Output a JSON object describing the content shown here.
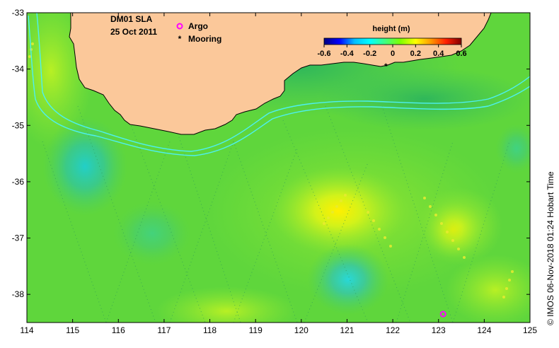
{
  "title": {
    "product": "DM01 SLA",
    "date": "25 Oct 2011"
  },
  "legend": [
    {
      "label": "Argo",
      "color": "#ff00ff",
      "marker": "circle-open"
    },
    {
      "label": "Mooring",
      "color": "#000000",
      "marker": "asterisk"
    }
  ],
  "colorbar": {
    "title": "height (m)",
    "ticks": [
      "-0.6",
      "-0.4",
      "-0.2",
      "0",
      "0.2",
      "0.4",
      "0.6"
    ],
    "range": [
      -0.6,
      0.6
    ],
    "colors": [
      "#000080",
      "#0000ff",
      "#00bfff",
      "#00ffff",
      "#40ff80",
      "#7fff00",
      "#ffff00",
      "#ff9900",
      "#ff2000",
      "#800000"
    ]
  },
  "axes": {
    "x": {
      "range": [
        114,
        125
      ],
      "ticks": [
        "114",
        "115",
        "116",
        "117",
        "118",
        "119",
        "120",
        "121",
        "122",
        "123",
        "124",
        "125"
      ]
    },
    "y": {
      "range": [
        -38.5,
        -33
      ],
      "ticks": [
        "-33",
        "-34",
        "-35",
        "-36",
        "-37",
        "-38"
      ]
    }
  },
  "credit": "© IMOS 06-Nov-2018 01:24 Hobart Time",
  "markers": {
    "argo": [
      {
        "lon": 123.1,
        "lat": -38.35
      }
    ],
    "mooring": [
      {
        "lon": 121.85,
        "lat": -33.93
      }
    ]
  },
  "colors": {
    "land": "#fbc89a",
    "ocean_base": "#5fd63c",
    "contour": "#4df0f0"
  }
}
